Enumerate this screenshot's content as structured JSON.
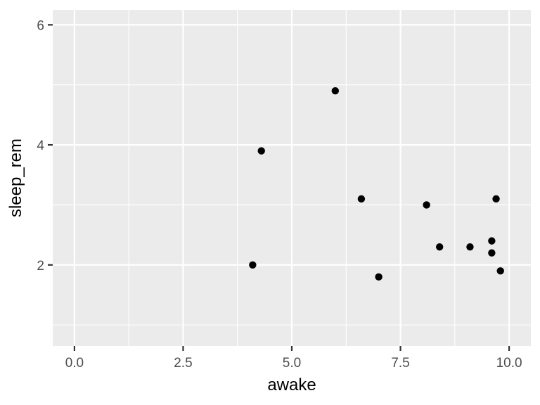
{
  "chart_data": {
    "type": "scatter",
    "title": "",
    "xlabel": "awake",
    "ylabel": "sleep_rem",
    "xlim": [
      -0.5,
      10.5
    ],
    "ylim": [
      0.65,
      6.25
    ],
    "x_ticks": [
      0.0,
      2.5,
      5.0,
      7.5,
      10.0
    ],
    "x_tick_labels": [
      "0.0",
      "2.5",
      "5.0",
      "7.5",
      "10.0"
    ],
    "y_ticks": [
      2,
      4,
      6
    ],
    "y_tick_labels": [
      "2",
      "4",
      "6"
    ],
    "grid": true,
    "legend": "none",
    "points": [
      {
        "x": 4.1,
        "y": 2.0
      },
      {
        "x": 4.3,
        "y": 3.9
      },
      {
        "x": 6.0,
        "y": 4.9
      },
      {
        "x": 6.6,
        "y": 3.1
      },
      {
        "x": 7.0,
        "y": 1.8
      },
      {
        "x": 8.1,
        "y": 3.0
      },
      {
        "x": 8.4,
        "y": 2.3
      },
      {
        "x": 9.1,
        "y": 2.3
      },
      {
        "x": 9.6,
        "y": 2.4
      },
      {
        "x": 9.6,
        "y": 2.2
      },
      {
        "x": 9.7,
        "y": 3.1
      },
      {
        "x": 9.8,
        "y": 1.9
      }
    ],
    "colors": {
      "panel_background": "#ebebeb",
      "grid_line": "#ffffff",
      "point": "#000000",
      "tick": "#333333"
    }
  }
}
